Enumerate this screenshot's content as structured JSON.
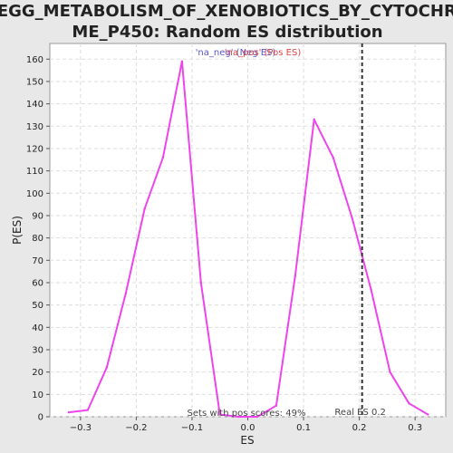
{
  "chart_data": {
    "type": "line",
    "title_lines": [
      "KEGG_METABOLISM_OF_XENOBIOTICS_BY_CYTOCHRO",
      "ME_P450: Random ES distribution"
    ],
    "xlabel": "ES",
    "ylabel": "P(ES)",
    "xlim": [
      -0.355,
      0.355
    ],
    "ylim": [
      0,
      167
    ],
    "xticks": [
      -0.3,
      -0.2,
      -0.1,
      0.0,
      0.1,
      0.2,
      0.3
    ],
    "xtick_labels": [
      "−0.3",
      "−0.2",
      "−0.1",
      "0.0",
      "0.1",
      "0.2",
      "0.3"
    ],
    "yticks": [
      0,
      10,
      20,
      30,
      40,
      50,
      60,
      70,
      80,
      90,
      100,
      110,
      120,
      130,
      140,
      150,
      160
    ],
    "grid": true,
    "series": [
      {
        "color": "#ee44ee",
        "x": [
          -0.321,
          -0.287,
          -0.253,
          -0.219,
          -0.185,
          -0.152,
          -0.118,
          -0.084,
          -0.05,
          -0.017,
          0.017,
          0.051,
          0.085,
          0.119,
          0.153,
          0.187,
          0.221,
          0.255,
          0.289,
          0.323
        ],
        "y": [
          2,
          3,
          22,
          55,
          93,
          116,
          159,
          60,
          1,
          0,
          0,
          5,
          63,
          133,
          116,
          89,
          57,
          20,
          6,
          1
        ]
      }
    ],
    "reference_line": {
      "x": 0.205,
      "label": "Real ES 0.2"
    },
    "legend": {
      "placement": "top-center",
      "entries": [
        {
          "text": "'na_neg' (Neg ES)",
          "color": "#5555cc"
        },
        {
          "text": "'na_pos' (Pos ES)",
          "color": "#dd4444"
        }
      ]
    },
    "annotation": "Sets with pos scores: 49%"
  }
}
